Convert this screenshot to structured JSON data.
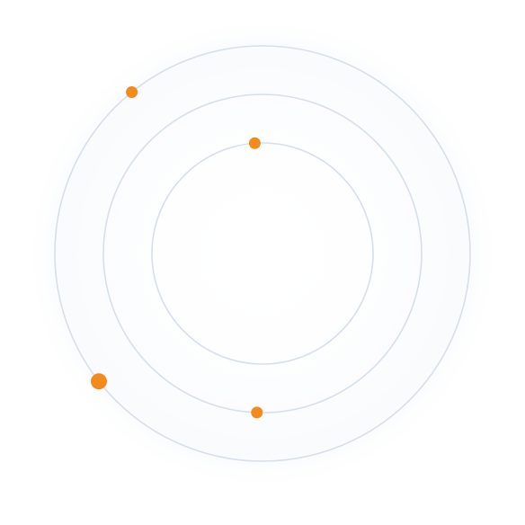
{
  "diagram": {
    "background": "#ffffff",
    "glow_color": "#f7f9fc",
    "ring_color": "#d6dfea",
    "dot_color": "#f28a1c",
    "rings": [
      {
        "id": "outer"
      },
      {
        "id": "middle"
      },
      {
        "id": "inner"
      }
    ],
    "dots": [
      {
        "ring": "outer",
        "angle_deg": 218
      },
      {
        "ring": "outer",
        "angle_deg": 129
      },
      {
        "ring": "middle",
        "angle_deg": 268
      },
      {
        "ring": "inner",
        "angle_deg": 94
      }
    ]
  }
}
